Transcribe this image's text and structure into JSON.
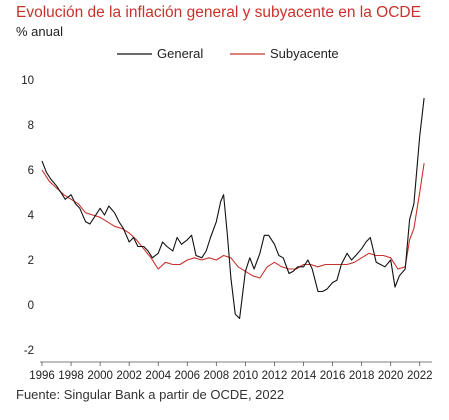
{
  "header": {
    "title": "Evolución de la inflación general y subyacente en la OCDE",
    "subtitle": "% anual"
  },
  "footer": {
    "source": "Fuente: Singular Bank a partir de OCDE, 2022"
  },
  "colors": {
    "general": "#111111",
    "subyacente": "#c8322b",
    "title": "#c8322b"
  },
  "chart_data": {
    "type": "line",
    "title": "Evolución de la inflación general y subyacente en la OCDE",
    "ylabel": "% anual",
    "xlim": [
      1996,
      2022.5
    ],
    "ylim": [
      -2,
      10
    ],
    "xticks": [
      1996,
      1998,
      2000,
      2002,
      2004,
      2006,
      2008,
      2010,
      2012,
      2014,
      2016,
      2018,
      2020,
      2022
    ],
    "yticks": [
      -2,
      0,
      2,
      4,
      6,
      8,
      10
    ],
    "grid": false,
    "legend_position": "top",
    "series": [
      {
        "name": "General",
        "x": [
          1996.0,
          1996.3,
          1996.6,
          1997.0,
          1997.3,
          1997.6,
          1998.0,
          1998.3,
          1998.6,
          1999.0,
          1999.3,
          1999.6,
          2000.0,
          2000.3,
          2000.6,
          2001.0,
          2001.3,
          2001.6,
          2002.0,
          2002.3,
          2002.6,
          2003.0,
          2003.3,
          2003.6,
          2004.0,
          2004.3,
          2004.6,
          2005.0,
          2005.3,
          2005.6,
          2006.0,
          2006.3,
          2006.6,
          2007.0,
          2007.3,
          2007.6,
          2008.0,
          2008.3,
          2008.5,
          2008.75,
          2009.0,
          2009.3,
          2009.6,
          2010.0,
          2010.3,
          2010.6,
          2011.0,
          2011.3,
          2011.6,
          2012.0,
          2012.3,
          2012.6,
          2013.0,
          2013.3,
          2013.6,
          2014.0,
          2014.3,
          2014.6,
          2015.0,
          2015.3,
          2015.6,
          2016.0,
          2016.3,
          2016.6,
          2017.0,
          2017.3,
          2017.6,
          2018.0,
          2018.3,
          2018.6,
          2019.0,
          2019.3,
          2019.6,
          2020.0,
          2020.3,
          2020.6,
          2021.0,
          2021.3,
          2021.6,
          2022.0,
          2022.3
        ],
        "values": [
          6.4,
          5.9,
          5.6,
          5.3,
          5.0,
          4.7,
          4.9,
          4.5,
          4.3,
          3.7,
          3.6,
          3.9,
          4.3,
          4.0,
          4.4,
          4.1,
          3.7,
          3.4,
          2.8,
          3.0,
          2.6,
          2.6,
          2.4,
          2.1,
          2.3,
          2.8,
          2.6,
          2.4,
          3.0,
          2.7,
          2.9,
          3.1,
          2.2,
          2.1,
          2.4,
          3.0,
          3.7,
          4.6,
          4.9,
          3.2,
          1.2,
          -0.4,
          -0.6,
          1.5,
          2.1,
          1.6,
          2.3,
          3.1,
          3.1,
          2.7,
          2.2,
          2.1,
          1.4,
          1.5,
          1.7,
          1.7,
          2.0,
          1.6,
          0.6,
          0.6,
          0.7,
          1.0,
          1.1,
          1.8,
          2.3,
          2.0,
          2.2,
          2.5,
          2.8,
          3.0,
          1.9,
          1.8,
          1.7,
          2.0,
          0.8,
          1.3,
          1.6,
          3.8,
          4.5,
          7.5,
          9.2
        ]
      },
      {
        "name": "Subyacente",
        "x": [
          1996.0,
          1996.5,
          1997.0,
          1997.5,
          1998.0,
          1998.5,
          1999.0,
          1999.5,
          2000.0,
          2000.5,
          2001.0,
          2001.5,
          2002.0,
          2002.5,
          2003.0,
          2003.5,
          2004.0,
          2004.5,
          2005.0,
          2005.5,
          2006.0,
          2006.5,
          2007.0,
          2007.5,
          2008.0,
          2008.5,
          2009.0,
          2009.5,
          2010.0,
          2010.5,
          2011.0,
          2011.5,
          2012.0,
          2012.5,
          2013.0,
          2013.5,
          2014.0,
          2014.5,
          2015.0,
          2015.5,
          2016.0,
          2016.5,
          2017.0,
          2017.5,
          2018.0,
          2018.5,
          2019.0,
          2019.5,
          2020.0,
          2020.5,
          2021.0,
          2021.3,
          2021.6,
          2022.0,
          2022.3
        ],
        "values": [
          6.0,
          5.5,
          5.2,
          4.9,
          4.7,
          4.5,
          4.1,
          4.0,
          3.9,
          3.7,
          3.5,
          3.4,
          3.2,
          2.9,
          2.5,
          2.1,
          1.6,
          1.9,
          1.8,
          1.8,
          2.0,
          2.1,
          2.0,
          2.1,
          2.0,
          2.2,
          2.1,
          1.7,
          1.5,
          1.3,
          1.2,
          1.7,
          1.9,
          1.7,
          1.6,
          1.6,
          1.8,
          1.8,
          1.7,
          1.8,
          1.8,
          1.8,
          1.8,
          1.9,
          2.1,
          2.3,
          2.2,
          2.2,
          2.1,
          1.6,
          1.7,
          2.9,
          3.4,
          5.0,
          6.3
        ]
      }
    ]
  }
}
